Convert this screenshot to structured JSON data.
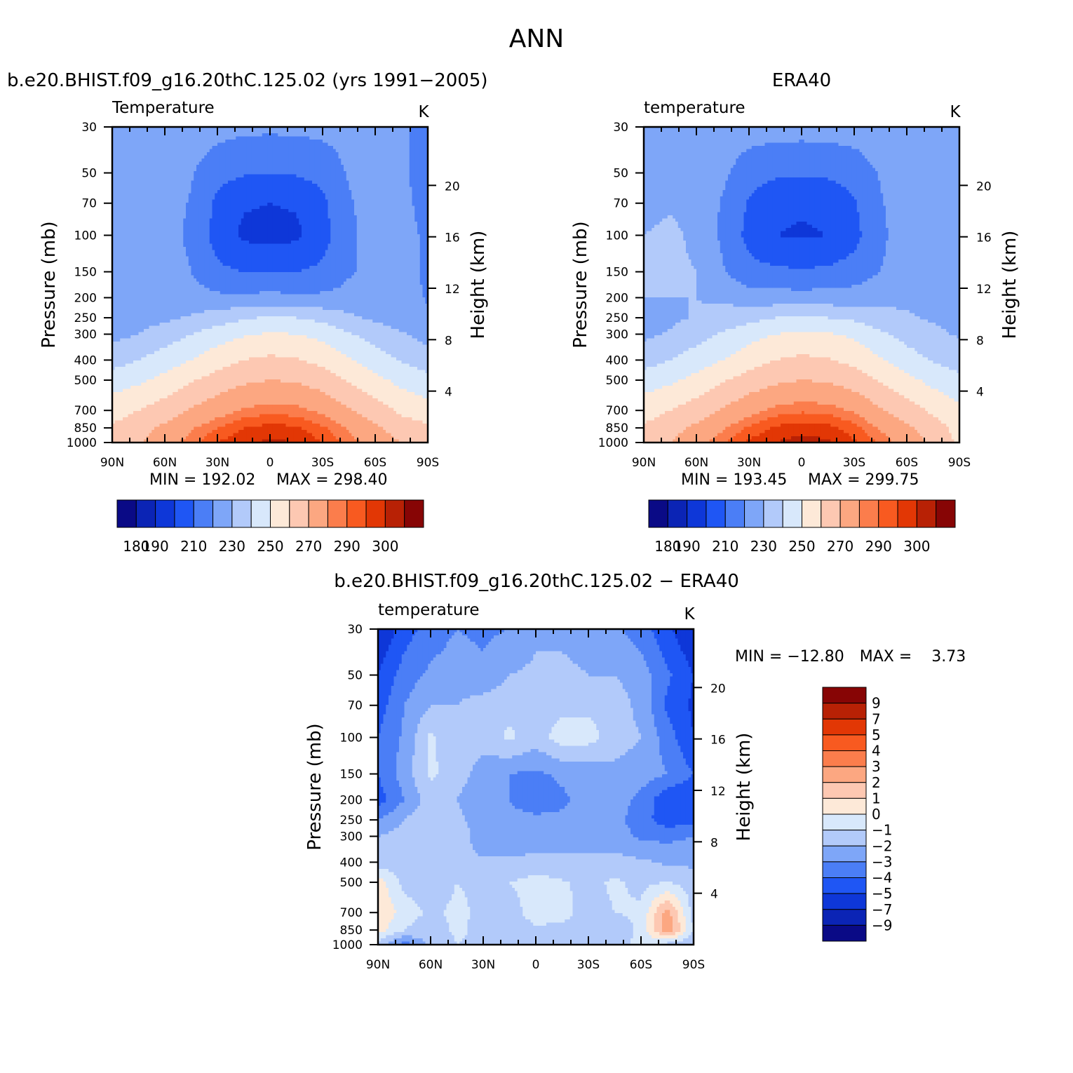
{
  "figure": {
    "season": "ANN",
    "difference_title": "b.e20.BHIST.f09_g16.20thC.125.02 − ERA40"
  },
  "axes": {
    "pressure_label": "Pressure (mb)",
    "height_label": "Height (km)",
    "units": "K",
    "pressure_ticks": [
      "30",
      "50",
      "70",
      "100",
      "150",
      "200",
      "250",
      "300",
      "400",
      "500",
      "700",
      "850",
      "1000"
    ],
    "pressure_values": [
      30,
      50,
      70,
      100,
      150,
      200,
      250,
      300,
      400,
      500,
      700,
      850,
      1000
    ],
    "height_ticks": [
      "20",
      "16",
      "12",
      "8",
      "4"
    ],
    "height_values": [
      20,
      16,
      12,
      8,
      4
    ],
    "lat_ticks": [
      "90N",
      "60N",
      "30N",
      "0",
      "30S",
      "60S",
      "90S"
    ],
    "lat_values": [
      90,
      60,
      30,
      0,
      -30,
      -60,
      -90
    ]
  },
  "colorbars": {
    "temperature_labels": [
      "180",
      "190",
      "210",
      "230",
      "250",
      "270",
      "290",
      "300"
    ],
    "temperature_colors": [
      "#0a0a86",
      "#0b24b5",
      "#0e37d8",
      "#1f56f4",
      "#4b7ef6",
      "#7ea6f8",
      "#b2cafa",
      "#d8e8fb",
      "#fde9d8",
      "#fdc8b2",
      "#fca781",
      "#fb7d4c",
      "#f85a20",
      "#e23705",
      "#b82105",
      "#870505"
    ],
    "difference_labels": [
      "9",
      "7",
      "5",
      "4",
      "3",
      "2",
      "1",
      "0",
      "−1",
      "−2",
      "−3",
      "−4",
      "−5",
      "−7",
      "−9"
    ],
    "difference_colors": [
      "#870505",
      "#b82105",
      "#e23705",
      "#f85a20",
      "#fb7d4c",
      "#fca781",
      "#fdc8b2",
      "#fde9d8",
      "#d8e8fb",
      "#b2cafa",
      "#7ea6f8",
      "#4b7ef6",
      "#1f56f4",
      "#0e37d8",
      "#0b24b5",
      "#0a0a86"
    ]
  },
  "chart_data": [
    {
      "type": "heatmap",
      "title": "b.e20.BHIST.f09_g16.20thC.125.02 (yrs 1991−2005)",
      "variable": "Temperature",
      "units": "K",
      "min_label": "MIN = 192.02",
      "max_label": "MAX = 298.40",
      "min": 192.02,
      "max": 298.4,
      "xlim": [
        90,
        -90
      ],
      "ylim": [
        1000,
        30
      ],
      "ylog": true,
      "x": [
        90,
        75,
        60,
        45,
        30,
        15,
        0,
        -15,
        -30,
        -45,
        -60,
        -75,
        -90
      ],
      "y": [
        1000,
        850,
        700,
        500,
        400,
        300,
        250,
        200,
        150,
        100,
        70,
        50,
        30
      ],
      "z": [
        [
          262,
          269,
          276,
          283,
          290,
          294,
          296,
          295,
          290,
          283,
          276,
          270,
          266
        ],
        [
          261,
          266,
          272,
          279,
          285,
          290,
          292,
          291,
          286,
          279,
          272,
          265,
          262
        ],
        [
          256,
          260,
          265,
          271,
          276,
          281,
          283,
          282,
          278,
          271,
          265,
          258,
          254
        ],
        [
          245,
          248,
          253,
          259,
          264,
          268,
          270,
          269,
          265,
          259,
          253,
          247,
          243
        ],
        [
          236,
          240,
          245,
          250,
          256,
          260,
          262,
          261,
          257,
          251,
          245,
          239,
          235
        ],
        [
          227,
          230,
          235,
          240,
          245,
          249,
          251,
          250,
          247,
          241,
          236,
          231,
          226
        ],
        [
          226,
          226,
          228,
          231,
          235,
          239,
          241,
          240,
          237,
          232,
          228,
          225,
          222
        ],
        [
          225,
          225,
          226,
          224,
          222,
          222,
          223,
          222,
          222,
          223,
          225,
          225,
          219
        ],
        [
          224,
          224,
          225,
          220,
          212,
          210,
          209,
          210,
          212,
          219,
          223,
          224,
          218
        ],
        [
          225,
          225,
          224,
          218,
          206,
          198,
          197,
          198,
          206,
          218,
          224,
          224,
          218
        ],
        [
          226,
          226,
          225,
          219,
          208,
          201,
          200,
          201,
          208,
          219,
          224,
          223,
          216
        ],
        [
          227,
          227,
          226,
          221,
          213,
          211,
          210,
          211,
          213,
          221,
          224,
          222,
          215
        ],
        [
          226,
          227,
          227,
          226,
          224,
          222,
          222,
          222,
          223,
          224,
          224,
          222,
          215
        ]
      ]
    },
    {
      "type": "heatmap",
      "title": "ERA40",
      "variable": "temperature",
      "units": "K",
      "min_label": "MIN = 193.45",
      "max_label": "MAX = 299.75",
      "min": 193.45,
      "max": 299.75,
      "xlim": [
        90,
        -90
      ],
      "ylim": [
        1000,
        30
      ],
      "ylog": true,
      "x": [
        90,
        75,
        60,
        45,
        30,
        15,
        0,
        -15,
        -30,
        -45,
        -60,
        -75,
        -90
      ],
      "y": [
        1000,
        850,
        700,
        500,
        400,
        300,
        250,
        200,
        150,
        100,
        70,
        50,
        30
      ],
      "z": [
        [
          262,
          270,
          277,
          284,
          291,
          295,
          297,
          296,
          291,
          284,
          276,
          268,
          258
        ],
        [
          261,
          266,
          272,
          279,
          286,
          291,
          293,
          292,
          287,
          279,
          272,
          265,
          256
        ],
        [
          256,
          260,
          265,
          271,
          277,
          282,
          284,
          283,
          279,
          271,
          265,
          258,
          252
        ],
        [
          245,
          248,
          253,
          259,
          264,
          268,
          270,
          269,
          265,
          259,
          253,
          247,
          243
        ],
        [
          236,
          240,
          245,
          250,
          256,
          260,
          262,
          261,
          257,
          251,
          245,
          239,
          235
        ],
        [
          228,
          231,
          236,
          241,
          246,
          250,
          252,
          251,
          248,
          242,
          236,
          232,
          229
        ],
        [
          227,
          228,
          231,
          234,
          237,
          240,
          241,
          240,
          238,
          234,
          231,
          229,
          228
        ],
        [
          230,
          230,
          230,
          228,
          225,
          224,
          224,
          224,
          225,
          227,
          228,
          228,
          227
        ],
        [
          231,
          232,
          230,
          221,
          213,
          212,
          211,
          212,
          214,
          220,
          225,
          226,
          222
        ],
        [
          230,
          232,
          228,
          218,
          207,
          200,
          199,
          200,
          207,
          218,
          225,
          225,
          222
        ],
        [
          227,
          229,
          227,
          219,
          209,
          202,
          201,
          202,
          209,
          219,
          226,
          226,
          221
        ],
        [
          227,
          228,
          227,
          222,
          214,
          212,
          211,
          212,
          214,
          221,
          226,
          226,
          220
        ],
        [
          227,
          228,
          228,
          227,
          225,
          224,
          224,
          224,
          225,
          226,
          229,
          227,
          220
        ]
      ]
    },
    {
      "type": "heatmap",
      "title": "b.e20.BHIST.f09_g16.20thC.125.02 − ERA40",
      "variable": "temperature",
      "units": "K",
      "min_label": "MIN = −12.80",
      "max_label": "MAX =    3.73",
      "min": -12.8,
      "max": 3.73,
      "xlim": [
        90,
        -90
      ],
      "ylim": [
        1000,
        30
      ],
      "ylog": true,
      "x": [
        90,
        75,
        60,
        45,
        30,
        15,
        0,
        -15,
        -30,
        -45,
        -60,
        -75,
        -90
      ],
      "y": [
        1000,
        850,
        700,
        500,
        400,
        300,
        250,
        200,
        150,
        100,
        70,
        50,
        30
      ],
      "z": [
        [
          -1.5,
          -3.5,
          -1.8,
          -1.0,
          -1.2,
          -1.3,
          -1.4,
          -1.2,
          -1.3,
          -1.6,
          -0.6,
          -1.5,
          -2.0
        ],
        [
          0.5,
          -1.0,
          -1.5,
          -0.8,
          -1.3,
          -1.5,
          -1.2,
          -1.3,
          -1.5,
          -1.6,
          -0.8,
          3.0,
          -1.0
        ],
        [
          1.0,
          -0.5,
          -1.2,
          -0.8,
          -1.2,
          -1.5,
          -0.5,
          -0.6,
          -1.5,
          -1.0,
          -0.8,
          2.5,
          -1.5
        ],
        [
          0.5,
          -1.3,
          -1.5,
          -1.0,
          -1.2,
          -1.0,
          -0.6,
          -0.9,
          -1.3,
          -0.8,
          -1.3,
          -1.0,
          -1.5
        ],
        [
          -1.5,
          -1.5,
          -1.6,
          -1.8,
          -1.9,
          -1.8,
          -1.7,
          -1.7,
          -1.8,
          -1.7,
          -1.8,
          -2.2,
          -2.2
        ],
        [
          -2.0,
          -1.5,
          -1.0,
          -1.5,
          -2.5,
          -2.7,
          -2.6,
          -2.5,
          -2.4,
          -2.5,
          -3.2,
          -3.3,
          -3.0
        ],
        [
          -3.0,
          -2.0,
          -1.0,
          -1.8,
          -2.4,
          -2.8,
          -2.8,
          -2.8,
          -2.5,
          -2.6,
          -3.6,
          -4.5,
          -4.5
        ],
        [
          -4.5,
          -3.0,
          -1.5,
          -2.0,
          -2.8,
          -3.0,
          -3.5,
          -3.2,
          -2.5,
          -2.5,
          -3.3,
          -4.8,
          -5.0
        ],
        [
          -4.0,
          -2.5,
          -0.8,
          -1.5,
          -2.5,
          -3.0,
          -3.2,
          -2.8,
          -2.6,
          -2.3,
          -2.5,
          -3.0,
          -4.0
        ],
        [
          -4.0,
          -2.8,
          -0.8,
          -1.8,
          -1.5,
          -0.8,
          -1.5,
          -0.5,
          -0.6,
          -1.5,
          -2.0,
          -3.5,
          -5.0
        ],
        [
          -4.5,
          -3.0,
          -2.0,
          -2.0,
          -1.5,
          -1.3,
          -1.4,
          -1.3,
          -1.2,
          -1.5,
          -2.3,
          -4.2,
          -5.2
        ],
        [
          -5.0,
          -3.5,
          -2.8,
          -2.5,
          -2.8,
          -2.0,
          -1.8,
          -1.5,
          -2.0,
          -2.0,
          -2.5,
          -3.8,
          -5.0
        ],
        [
          -6.0,
          -4.5,
          -3.5,
          -3.0,
          -3.2,
          -3.0,
          -2.2,
          -2.5,
          -3.0,
          -2.8,
          -3.5,
          -4.8,
          -6.0
        ]
      ]
    }
  ]
}
